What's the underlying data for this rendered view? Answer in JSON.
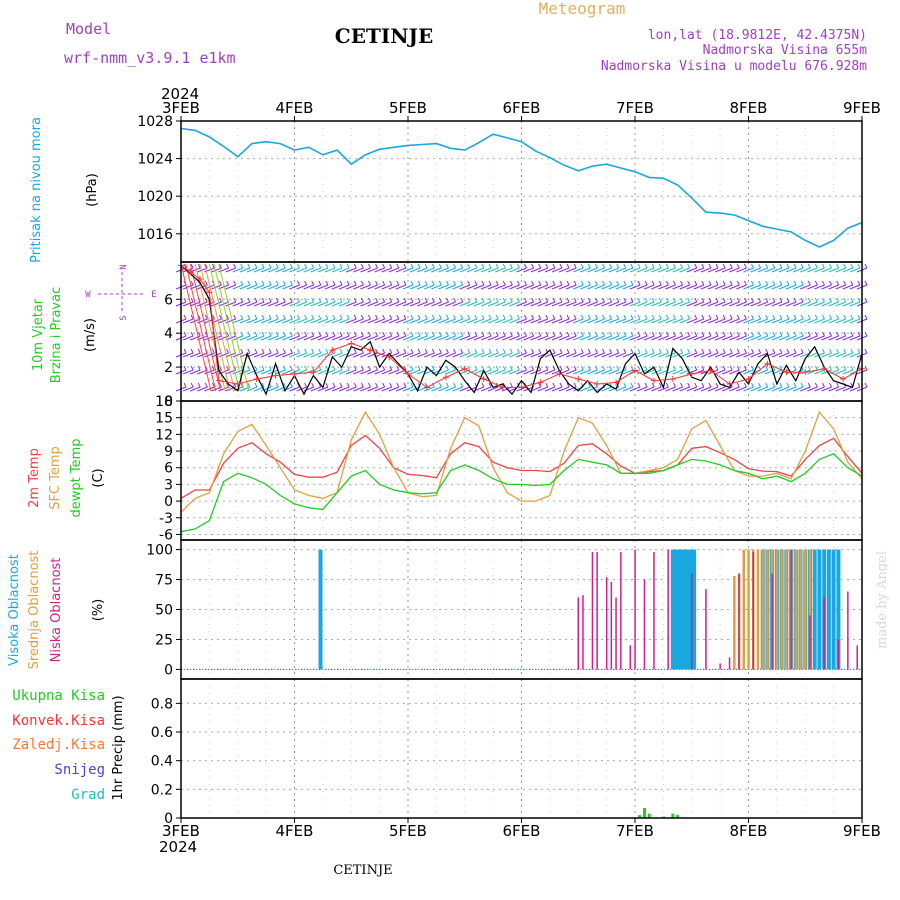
{
  "header": {
    "model_label": "Model",
    "model_name": "wrf-nmm_v3.9.1 e1km",
    "station": "CETINJE",
    "meteogram": "Meteogram",
    "lonlat": "lon,lat (18.9812E, 42.4375N)",
    "altitude": "Nadmorska Visina 655m",
    "model_altitude": "Nadmorska Visina u modelu 676.928m",
    "year": "2024",
    "footer_station": "CETINJE",
    "credit": "made by Angel"
  },
  "colors": {
    "pressure": "#1aa7e0",
    "wind_speed": "#000000",
    "wind_gust": "#ff3333",
    "temp2m": "#ee4444",
    "sfc_temp": "#e0a040",
    "dewpt": "#22cc22",
    "cloud_high": "#1aa7e0",
    "cloud_mid": "#e0a040",
    "cloud_low": "#cc2288",
    "precip_total": "#22cc22",
    "precip_conv": "#ff3333",
    "precip_frozen": "#ff7733",
    "precip_snow": "#4444dd",
    "precip_graupel": "#22bbbb",
    "model_text": "#a040c0",
    "meteogram_text": "#e0b060"
  },
  "x_axis": {
    "ticks": [
      "3FEB",
      "4FEB",
      "5FEB",
      "6FEB",
      "7FEB",
      "8FEB",
      "9FEB"
    ],
    "xlim_hours": [
      0,
      144
    ]
  },
  "chart_data": [
    {
      "type": "line",
      "panel": "pressure",
      "ylabel": [
        "Pritisak na nivou mora",
        "(hPa)"
      ],
      "ylim": [
        1013,
        1028
      ],
      "yticks": [
        1016,
        1020,
        1024,
        1028
      ],
      "grid": true,
      "series": [
        {
          "x": [
            0,
            3,
            6,
            9,
            12,
            15,
            18,
            21,
            24,
            27,
            30,
            33,
            36,
            39,
            42,
            45,
            48,
            51,
            54,
            57,
            60,
            63,
            66,
            69,
            72,
            75,
            78,
            81,
            84,
            87,
            90,
            93,
            96,
            99,
            102,
            105,
            108,
            111,
            114,
            117,
            120,
            123,
            126,
            129,
            132,
            135,
            138,
            141,
            144
          ],
          "values": [
            1027.2,
            1027.0,
            1026.3,
            1025.3,
            1024.2,
            1025.6,
            1025.8,
            1025.6,
            1024.9,
            1025.2,
            1024.4,
            1024.9,
            1023.4,
            1024.4,
            1025.0,
            1025.2,
            1025.4,
            1025.5,
            1025.6,
            1025.1,
            1024.9,
            1025.7,
            1026.6,
            1026.2,
            1025.8,
            1024.8,
            1024.1,
            1023.3,
            1022.7,
            1023.2,
            1023.4,
            1023.0,
            1022.6,
            1022.0,
            1021.9,
            1021.2,
            1019.8,
            1018.3,
            1018.2,
            1018.0,
            1017.4,
            1016.8,
            1016.5,
            1016.2,
            1015.3,
            1014.6,
            1015.3,
            1016.6,
            1017.2
          ]
        }
      ]
    },
    {
      "type": "line",
      "panel": "wind",
      "ylabel": [
        "10m Vjetar",
        "Brzina i Pravac",
        "(m/s)"
      ],
      "compass": [
        "N",
        "W",
        "E",
        "S"
      ],
      "ylim": [
        0,
        8.2
      ],
      "yticks": [
        0,
        2,
        4,
        6
      ],
      "grid": true,
      "series": [
        {
          "name": "speed",
          "x": [
            0,
            2,
            4,
            6,
            8,
            10,
            12,
            14,
            16,
            18,
            20,
            22,
            24,
            26,
            28,
            30,
            32,
            34,
            36,
            38,
            40,
            42,
            44,
            46,
            48,
            50,
            52,
            54,
            56,
            58,
            60,
            62,
            64,
            66,
            68,
            70,
            72,
            74,
            76,
            78,
            80,
            82,
            84,
            86,
            88,
            90,
            92,
            94,
            96,
            98,
            100,
            102,
            104,
            106,
            108,
            110,
            112,
            114,
            116,
            118,
            120,
            122,
            124,
            126,
            128,
            130,
            132,
            134,
            136,
            138,
            140,
            142,
            144
          ],
          "values": [
            8.0,
            7.5,
            7.0,
            6.0,
            1.8,
            1.0,
            0.6,
            2.8,
            1.5,
            0.4,
            2.2,
            0.6,
            1.5,
            0.4,
            1.5,
            0.8,
            2.6,
            2.0,
            3.2,
            3.0,
            3.5,
            2.0,
            2.8,
            2.2,
            1.6,
            0.6,
            2.0,
            1.5,
            2.4,
            2.0,
            1.2,
            0.5,
            1.8,
            0.8,
            1.0,
            0.4,
            1.2,
            0.5,
            2.5,
            3.0,
            1.8,
            1.0,
            0.6,
            1.2,
            0.5,
            1.0,
            0.7,
            2.2,
            2.8,
            1.6,
            2.0,
            0.8,
            3.1,
            2.5,
            1.4,
            1.2,
            2.0,
            1.0,
            0.8,
            1.7,
            1.0,
            2.2,
            2.8,
            1.0,
            2.1,
            1.2,
            2.5,
            3.2,
            2.0,
            1.2,
            1.0,
            0.8,
            2.8
          ]
        },
        {
          "name": "gust",
          "x": [
            0,
            2,
            4,
            6,
            8,
            12,
            16,
            20,
            24,
            28,
            32,
            36,
            40,
            44,
            48,
            52,
            56,
            60,
            64,
            68,
            72,
            76,
            80,
            84,
            88,
            92,
            96,
            100,
            104,
            108,
            112,
            116,
            120,
            124,
            128,
            132,
            136,
            140,
            144
          ],
          "values": [
            8.0,
            7.6,
            7.2,
            6.4,
            1.2,
            1.0,
            1.3,
            1.5,
            1.6,
            1.7,
            3.0,
            3.4,
            3.0,
            2.6,
            1.6,
            0.8,
            1.4,
            1.9,
            1.3,
            0.8,
            0.8,
            1.1,
            1.6,
            1.3,
            1.0,
            1.1,
            1.8,
            1.2,
            1.3,
            1.6,
            1.8,
            1.0,
            1.3,
            2.2,
            1.7,
            1.7,
            1.9,
            1.3,
            1.9
          ]
        }
      ]
    },
    {
      "type": "line",
      "panel": "temperature",
      "ylabel": [
        "2m Temp",
        "SFC Temp",
        "dewpt Temp",
        "(C)"
      ],
      "ylim": [
        -7,
        18
      ],
      "yticks": [
        -6,
        -3,
        0,
        3,
        6,
        9,
        12,
        15,
        18
      ],
      "grid": true,
      "series": [
        {
          "name": "2m Temp",
          "x": [
            0,
            3,
            6,
            9,
            12,
            15,
            18,
            21,
            24,
            27,
            30,
            33,
            36,
            39,
            42,
            45,
            48,
            51,
            54,
            57,
            60,
            63,
            66,
            69,
            72,
            75,
            78,
            81,
            84,
            87,
            90,
            93,
            96,
            99,
            102,
            105,
            108,
            111,
            114,
            117,
            120,
            123,
            126,
            129,
            132,
            135,
            138,
            141,
            144
          ],
          "values": [
            0.5,
            2.0,
            2.0,
            6.8,
            9.5,
            10.5,
            8.5,
            7.0,
            4.8,
            4.3,
            4.3,
            5.2,
            10.0,
            11.8,
            9.5,
            6.0,
            4.8,
            4.6,
            4.2,
            8.5,
            10.5,
            9.8,
            7.0,
            6.0,
            5.5,
            5.5,
            5.3,
            6.8,
            10.0,
            10.3,
            8.5,
            6.3,
            5.0,
            5.3,
            5.5,
            6.5,
            9.5,
            9.8,
            8.7,
            7.5,
            5.8,
            5.4,
            5.3,
            4.5,
            7.5,
            10.0,
            11.3,
            8.0,
            5.0
          ]
        },
        {
          "name": "SFC Temp",
          "x": [
            0,
            3,
            6,
            9,
            12,
            15,
            18,
            21,
            24,
            27,
            30,
            33,
            36,
            39,
            42,
            45,
            48,
            51,
            54,
            57,
            60,
            63,
            66,
            69,
            72,
            75,
            78,
            81,
            84,
            87,
            90,
            93,
            96,
            99,
            102,
            105,
            108,
            111,
            114,
            117,
            120,
            123,
            126,
            129,
            132,
            135,
            138,
            141,
            144
          ],
          "values": [
            -2.0,
            0.5,
            1.5,
            8.5,
            12.5,
            13.8,
            10.0,
            6.0,
            2.0,
            1.0,
            0.5,
            1.5,
            11.0,
            16.0,
            12.0,
            6.0,
            1.5,
            0.8,
            1.0,
            9.5,
            15.0,
            13.5,
            6.0,
            1.5,
            0.0,
            0.0,
            1.0,
            9.0,
            15.0,
            14.0,
            10.0,
            5.0,
            5.0,
            5.5,
            6.0,
            7.5,
            13.0,
            14.5,
            10.0,
            5.5,
            4.5,
            4.5,
            5.0,
            4.0,
            9.0,
            16.0,
            13.0,
            7.0,
            4.0
          ]
        },
        {
          "name": "dewpt Temp",
          "x": [
            0,
            3,
            6,
            9,
            12,
            15,
            18,
            21,
            24,
            27,
            30,
            33,
            36,
            39,
            42,
            45,
            48,
            51,
            54,
            57,
            60,
            63,
            66,
            69,
            72,
            75,
            78,
            81,
            84,
            87,
            90,
            93,
            96,
            99,
            102,
            105,
            108,
            111,
            114,
            117,
            120,
            123,
            126,
            129,
            132,
            135,
            138,
            141,
            144
          ],
          "values": [
            -5.5,
            -5.0,
            -3.5,
            3.5,
            5.0,
            4.2,
            3.0,
            1.0,
            -0.5,
            -1.2,
            -1.5,
            1.5,
            4.5,
            5.5,
            3.0,
            2.0,
            1.5,
            1.3,
            1.5,
            5.5,
            6.5,
            5.5,
            4.0,
            3.0,
            3.0,
            2.8,
            3.0,
            5.5,
            7.5,
            7.0,
            6.5,
            5.0,
            5.0,
            5.0,
            5.5,
            6.5,
            7.5,
            7.2,
            6.5,
            5.5,
            5.0,
            4.0,
            4.5,
            3.5,
            5.0,
            7.5,
            8.5,
            6.0,
            4.5
          ]
        }
      ]
    },
    {
      "type": "bar",
      "panel": "clouds",
      "ylabel": [
        "Visoka Oblacnost",
        "Srednja Oblacnost",
        "Niska Oblacnost",
        "(%)"
      ],
      "ylim": [
        -8,
        108
      ],
      "yticks": [
        0,
        25,
        50,
        75,
        100
      ],
      "grid": true,
      "series": [
        {
          "name": "Visoka Oblacnost",
          "x": [
            29.5,
            104,
            104.5,
            105,
            105.5,
            106,
            106.5,
            107,
            107.5,
            108,
            108.5,
            123,
            124,
            125,
            126,
            127,
            128,
            129,
            130,
            131,
            132,
            133,
            134,
            135,
            136,
            137,
            138,
            139
          ],
          "values": [
            100,
            100,
            100,
            100,
            100,
            100,
            100,
            100,
            100,
            100,
            100,
            100,
            100,
            100,
            100,
            100,
            100,
            100,
            100,
            100,
            100,
            100,
            100,
            100,
            100,
            100,
            100,
            100
          ]
        },
        {
          "name": "Srednja Oblacnost",
          "x": [
            117,
            118,
            119,
            120,
            121,
            122,
            123,
            124,
            125,
            126,
            127,
            128,
            129,
            130,
            131,
            132,
            133
          ],
          "values": [
            78,
            80,
            100,
            100,
            100,
            100,
            100,
            100,
            100,
            100,
            100,
            100,
            100,
            100,
            100,
            100,
            100
          ]
        },
        {
          "name": "Niska Oblacnost",
          "x": [
            84,
            85,
            87,
            88,
            90,
            91,
            92,
            93,
            95,
            96,
            98,
            100,
            103,
            108,
            111,
            114,
            116,
            118,
            121,
            125,
            129,
            133,
            136,
            139,
            141,
            143
          ],
          "values": [
            60,
            62,
            98,
            98,
            77,
            73,
            60,
            98,
            20,
            100,
            75,
            98,
            100,
            80,
            67,
            5,
            10,
            80,
            98,
            80,
            100,
            45,
            60,
            25,
            65,
            20
          ]
        }
      ]
    },
    {
      "type": "bar",
      "panel": "precipitation",
      "ylabel": [
        "1hr Precip (mm)"
      ],
      "legend": [
        "Ukupna Kisa",
        "Konvek.Kisa",
        "Zaledj.Kisa",
        "Snijeg",
        "Grad"
      ],
      "ylim": [
        0,
        0.97
      ],
      "yticks": [
        0,
        0.2,
        0.4,
        0.6,
        0.8
      ],
      "grid": true,
      "series": [
        {
          "name": "Ukupna Kisa",
          "x": [
            97,
            98,
            99,
            102,
            104,
            105
          ],
          "values": [
            0.02,
            0.07,
            0.03,
            0.01,
            0.03,
            0.02
          ]
        }
      ]
    }
  ]
}
